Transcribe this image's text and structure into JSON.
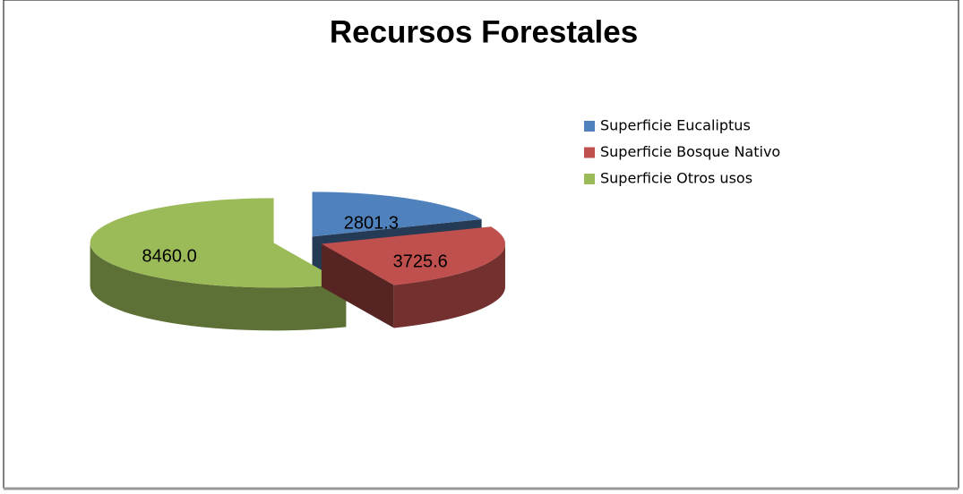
{
  "chart_data": {
    "type": "pie",
    "title": "Recursos Forestales",
    "categories": [
      "Superficie Eucaliptus",
      "Superficie Bosque Nativo",
      "Superficie Otros usos"
    ],
    "values": [
      2801.3,
      3725.6,
      8460.0
    ],
    "value_labels": [
      "2801.3",
      "3725.6",
      "8460.0"
    ],
    "colors": [
      "#4f81bd",
      "#c0504d",
      "#9bbb59"
    ],
    "legend": "right"
  }
}
